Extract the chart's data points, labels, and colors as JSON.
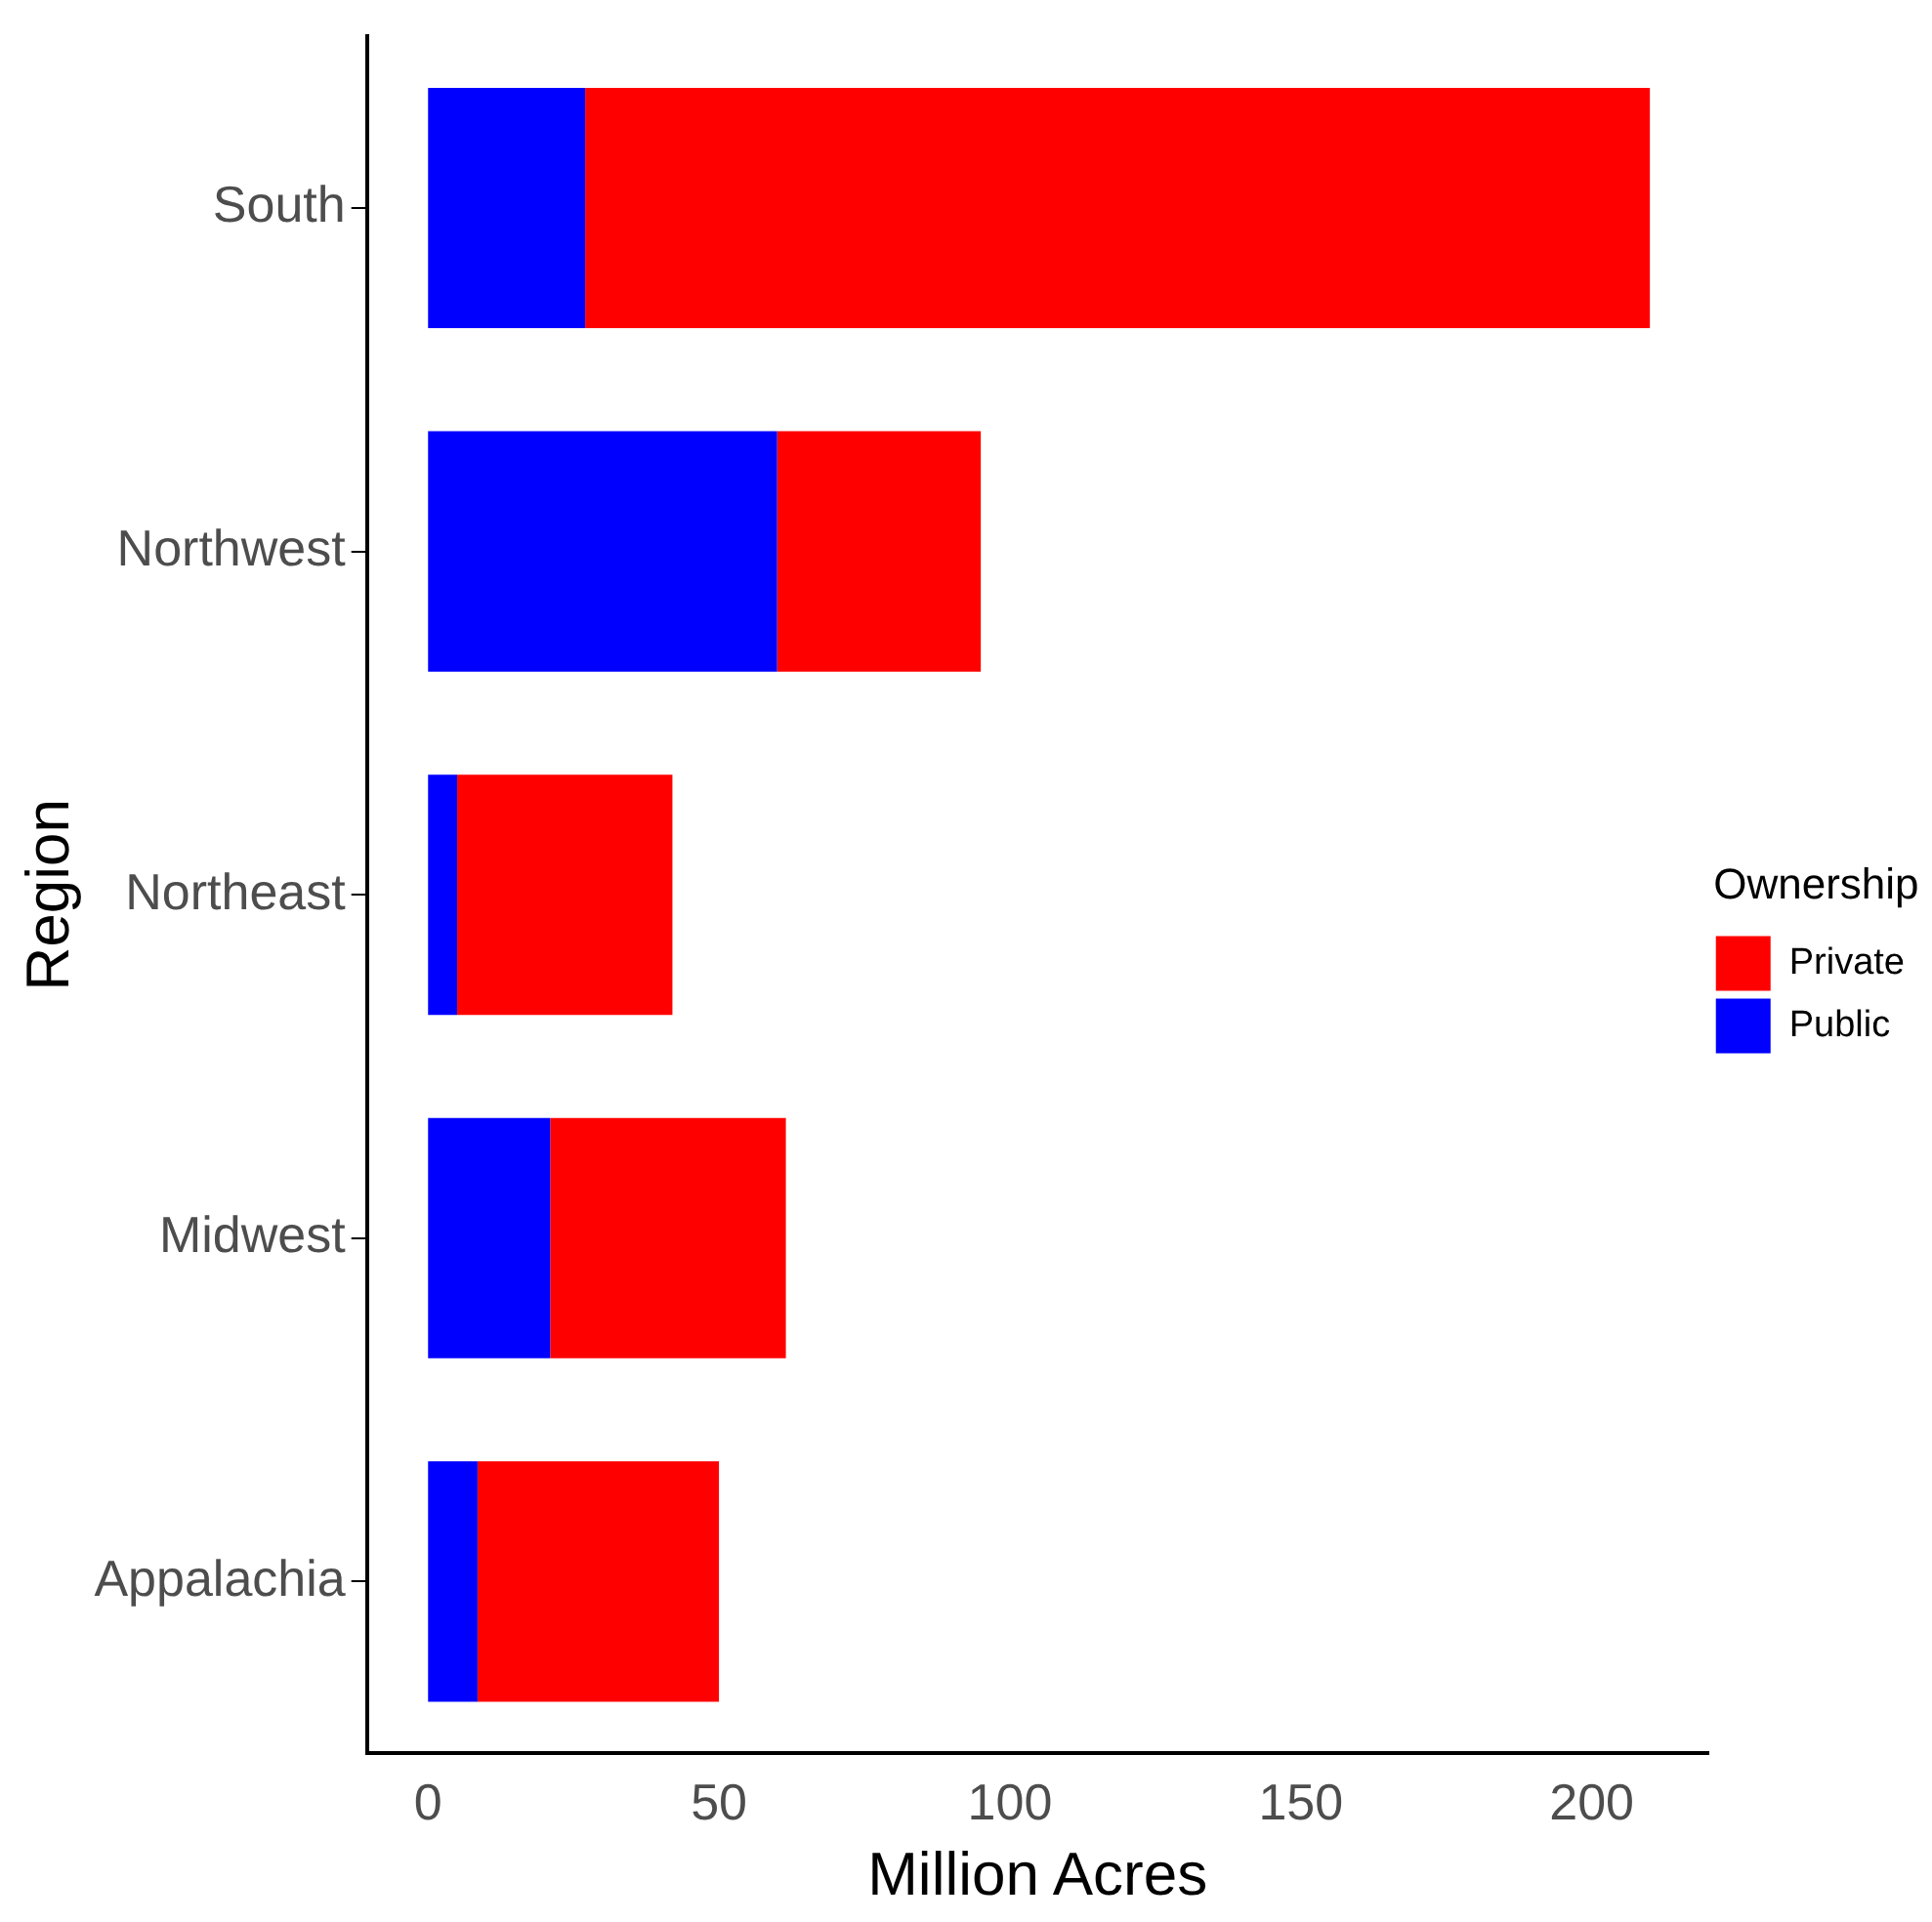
{
  "chart_data": {
    "type": "bar",
    "orientation": "horizontal",
    "stacked": true,
    "categories": [
      "South",
      "Northwest",
      "Northeast",
      "Midwest",
      "Appalachia"
    ],
    "series": [
      {
        "name": "Public",
        "color": "#0000ff",
        "values": [
          27,
          60,
          5,
          21,
          8.5
        ]
      },
      {
        "name": "Private",
        "color": "#ff0000",
        "values": [
          183,
          35,
          37,
          40.5,
          41.5
        ]
      }
    ],
    "xlabel": "Million Acres",
    "ylabel": "Region",
    "legend_title": "Ownership",
    "legend": "right",
    "xlim": [
      -10.5,
      220
    ],
    "xticks": [
      0,
      50,
      100,
      150,
      200
    ],
    "grid": false
  }
}
